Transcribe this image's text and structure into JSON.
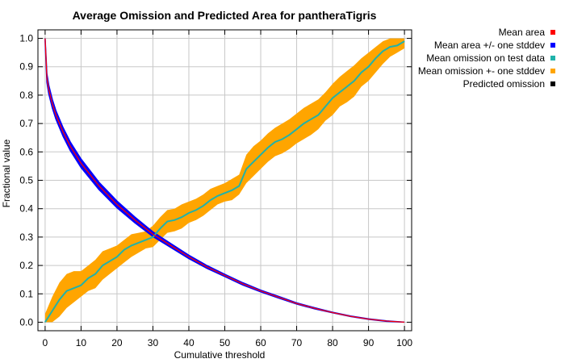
{
  "chart_data": {
    "type": "line",
    "title": "Average Omission and Predicted Area for pantheraTigris",
    "xlabel": "Cumulative threshold",
    "ylabel": "Fractional value",
    "xlim": [
      -2,
      102
    ],
    "ylim": [
      -0.03,
      1.03
    ],
    "x_ticks": [
      0,
      10,
      20,
      30,
      40,
      50,
      60,
      70,
      80,
      90,
      100
    ],
    "y_ticks": [
      0.0,
      0.1,
      0.2,
      0.3,
      0.4,
      0.5,
      0.6,
      0.7,
      0.8,
      0.9,
      1.0
    ],
    "x_tick_labels": [
      "0",
      "10",
      "20",
      "30",
      "40",
      "50",
      "60",
      "70",
      "80",
      "90",
      "100"
    ],
    "y_tick_labels": [
      "0.0",
      "0.1",
      "0.2",
      "0.3",
      "0.4",
      "0.5",
      "0.6",
      "0.7",
      "0.8",
      "0.9",
      "1.0"
    ],
    "grid": true,
    "legend_position": "top-right-outside",
    "legend": [
      {
        "name": "Mean area",
        "color": "#ff0000"
      },
      {
        "name": "Mean area +/- one stddev",
        "color": "#0000ff"
      },
      {
        "name": "Mean omission on test data",
        "color": "#20b2aa"
      },
      {
        "name": "Mean omission +- one stddev",
        "color": "#ffa500"
      },
      {
        "name": "Predicted omission",
        "color": "#000000"
      }
    ],
    "series": [
      {
        "name": "Mean area",
        "color": "#ff0000",
        "x": [
          0,
          0.5,
          1,
          2,
          3,
          5,
          7,
          10,
          15,
          20,
          25,
          30,
          35,
          40,
          45,
          50,
          55,
          60,
          65,
          70,
          75,
          80,
          85,
          90,
          95,
          100
        ],
        "y": [
          1.0,
          0.86,
          0.82,
          0.77,
          0.73,
          0.67,
          0.62,
          0.56,
          0.48,
          0.415,
          0.36,
          0.31,
          0.27,
          0.23,
          0.195,
          0.165,
          0.135,
          0.11,
          0.088,
          0.066,
          0.049,
          0.034,
          0.021,
          0.011,
          0.004,
          0.0
        ]
      },
      {
        "name": "Mean area +/- one stddev",
        "color": "#0000ff",
        "x": [
          0,
          0.5,
          1,
          2,
          3,
          5,
          7,
          10,
          15,
          20,
          25,
          30,
          35,
          40,
          45,
          50,
          55,
          60,
          65,
          70,
          75,
          80,
          85,
          90,
          95,
          100
        ],
        "y_low": [
          0.99,
          0.845,
          0.805,
          0.755,
          0.715,
          0.655,
          0.605,
          0.545,
          0.467,
          0.403,
          0.35,
          0.302,
          0.263,
          0.224,
          0.19,
          0.161,
          0.131,
          0.107,
          0.085,
          0.064,
          0.047,
          0.033,
          0.02,
          0.01,
          0.003,
          0.0
        ],
        "y_high": [
          1.0,
          0.875,
          0.835,
          0.785,
          0.745,
          0.685,
          0.635,
          0.575,
          0.493,
          0.427,
          0.37,
          0.318,
          0.277,
          0.236,
          0.2,
          0.169,
          0.139,
          0.113,
          0.091,
          0.068,
          0.051,
          0.035,
          0.022,
          0.012,
          0.005,
          0.0
        ]
      },
      {
        "name": "Mean omission on test data",
        "color": "#20b2aa",
        "x": [
          0,
          2,
          4,
          6,
          8,
          10,
          12,
          14,
          16,
          18,
          20,
          22,
          24,
          26,
          28,
          30,
          32,
          34,
          36,
          38,
          40,
          42,
          44,
          46,
          48,
          50,
          52,
          54,
          56,
          58,
          60,
          62,
          64,
          66,
          68,
          70,
          72,
          74,
          76,
          78,
          80,
          82,
          84,
          86,
          88,
          90,
          92,
          94,
          96,
          98,
          100
        ],
        "y": [
          0.0,
          0.04,
          0.08,
          0.11,
          0.12,
          0.13,
          0.155,
          0.17,
          0.2,
          0.215,
          0.23,
          0.255,
          0.27,
          0.28,
          0.29,
          0.3,
          0.33,
          0.355,
          0.36,
          0.37,
          0.385,
          0.395,
          0.41,
          0.43,
          0.445,
          0.455,
          0.465,
          0.48,
          0.54,
          0.565,
          0.59,
          0.615,
          0.635,
          0.645,
          0.66,
          0.68,
          0.7,
          0.715,
          0.73,
          0.76,
          0.79,
          0.81,
          0.83,
          0.85,
          0.88,
          0.9,
          0.93,
          0.955,
          0.97,
          0.975,
          0.99
        ]
      },
      {
        "name": "Mean omission +- one stddev",
        "color": "#ffa500",
        "x": [
          0,
          2,
          4,
          6,
          8,
          10,
          12,
          14,
          16,
          18,
          20,
          22,
          24,
          26,
          28,
          30,
          32,
          34,
          36,
          38,
          40,
          42,
          44,
          46,
          48,
          50,
          52,
          54,
          56,
          58,
          60,
          62,
          64,
          66,
          68,
          70,
          72,
          74,
          76,
          78,
          80,
          82,
          84,
          86,
          88,
          90,
          92,
          94,
          96,
          98,
          100
        ],
        "y_low": [
          0.0,
          0.0,
          0.02,
          0.05,
          0.07,
          0.09,
          0.11,
          0.12,
          0.15,
          0.17,
          0.19,
          0.21,
          0.23,
          0.245,
          0.26,
          0.265,
          0.29,
          0.315,
          0.32,
          0.33,
          0.35,
          0.36,
          0.375,
          0.395,
          0.415,
          0.425,
          0.43,
          0.45,
          0.49,
          0.515,
          0.54,
          0.565,
          0.585,
          0.595,
          0.61,
          0.63,
          0.645,
          0.66,
          0.68,
          0.71,
          0.73,
          0.76,
          0.775,
          0.795,
          0.83,
          0.85,
          0.88,
          0.91,
          0.935,
          0.95,
          0.965
        ],
        "y_high": [
          0.03,
          0.09,
          0.14,
          0.17,
          0.18,
          0.18,
          0.2,
          0.22,
          0.25,
          0.26,
          0.27,
          0.29,
          0.31,
          0.315,
          0.32,
          0.34,
          0.37,
          0.395,
          0.4,
          0.415,
          0.425,
          0.435,
          0.45,
          0.47,
          0.48,
          0.49,
          0.505,
          0.52,
          0.59,
          0.62,
          0.64,
          0.665,
          0.685,
          0.7,
          0.715,
          0.735,
          0.755,
          0.77,
          0.785,
          0.81,
          0.84,
          0.865,
          0.885,
          0.905,
          0.93,
          0.95,
          0.97,
          0.99,
          1.0,
          1.0,
          1.0
        ]
      }
    ]
  }
}
